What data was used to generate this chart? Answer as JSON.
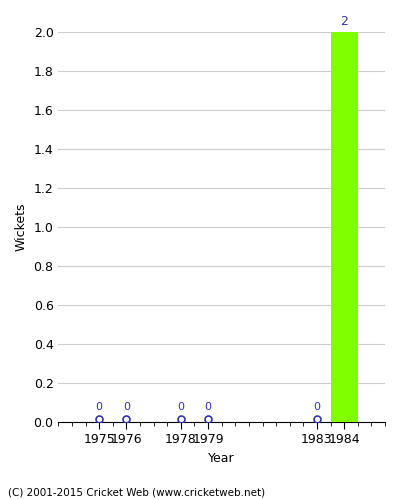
{
  "years": [
    1975,
    1976,
    1978,
    1979,
    1983,
    1984
  ],
  "values": [
    0,
    0,
    0,
    0,
    0,
    2
  ],
  "bar_color": "#7FFF00",
  "zero_marker_color": "#3333aa",
  "ylabel": "Wickets",
  "xlabel": "Year",
  "xlim": [
    1973.5,
    1985.5
  ],
  "ylim": [
    0,
    2.0
  ],
  "yticks": [
    0.0,
    0.2,
    0.4,
    0.6,
    0.8,
    1.0,
    1.2,
    1.4,
    1.6,
    1.8,
    2.0
  ],
  "bar_width": 1.0,
  "footer_text": "(C) 2001-2015 Cricket Web (www.cricketweb.net)",
  "annotation_color": "#3333aa",
  "grid_color": "#cccccc",
  "background_color": "#ffffff",
  "fig_background_color": "#ffffff"
}
